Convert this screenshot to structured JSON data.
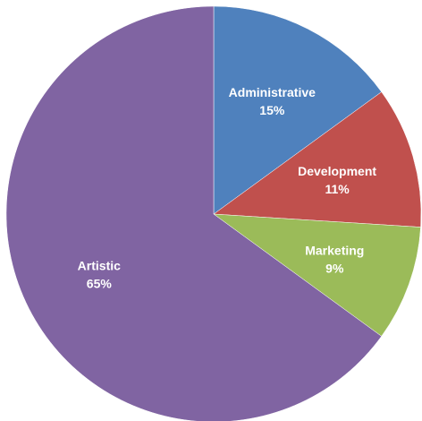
{
  "chart_data": {
    "type": "pie",
    "title": "",
    "slices": [
      {
        "label": "Administrative",
        "value": 15,
        "value_label": "15%",
        "color": "#4F81BD"
      },
      {
        "label": "Development",
        "value": 11,
        "value_label": "11%",
        "color": "#C0504D"
      },
      {
        "label": "Marketing",
        "value": 9,
        "value_label": "9%",
        "color": "#9BBB59"
      },
      {
        "label": "Artistic",
        "value": 65,
        "value_label": "65%",
        "color": "#8064A2"
      }
    ],
    "start_angle": "12 o'clock",
    "direction": "clockwise",
    "legend": "none",
    "labels_inside": true
  }
}
